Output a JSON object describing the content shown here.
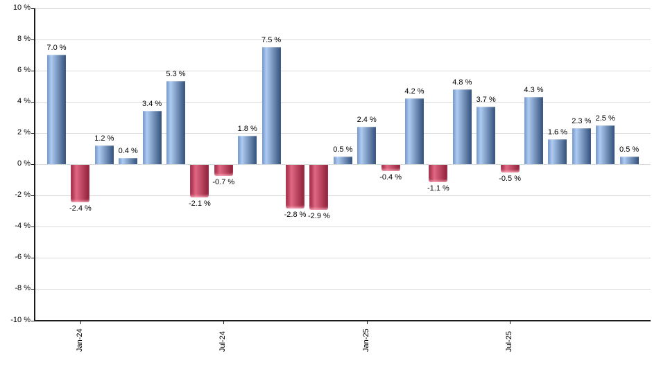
{
  "chart_data": {
    "type": "bar",
    "title": "",
    "xlabel": "",
    "ylabel": "",
    "ylim": [
      -10,
      10
    ],
    "y_tick_step": 2,
    "grid": "horizontal",
    "legend": "none",
    "y_tick_labels": [
      "10 %",
      "8 %",
      "6 %",
      "4 %",
      "2 %",
      "0 %",
      "-2 %",
      "-4 %",
      "-6 %",
      "-8 %",
      "-10 %"
    ],
    "values": [
      7.0,
      -2.4,
      1.2,
      0.4,
      3.4,
      5.3,
      -2.1,
      -0.7,
      1.8,
      7.5,
      -2.8,
      -2.9,
      0.5,
      2.4,
      -0.4,
      4.2,
      -1.1,
      4.8,
      3.7,
      -0.5,
      4.3,
      1.6,
      2.3,
      2.5,
      0.5
    ],
    "bar_labels": [
      "7.0 %",
      "-2.4 %",
      "1.2 %",
      "0.4 %",
      "3.4 %",
      "5.3 %",
      "-2.1 %",
      "-0.7 %",
      "1.8 %",
      "7.5 %",
      "-2.8 %",
      "-2.9 %",
      "0.5 %",
      "2.4 %",
      "-0.4 %",
      "4.2 %",
      "-1.1 %",
      "4.8 %",
      "3.7 %",
      "-0.5 %",
      "4.3 %",
      "1.6 %",
      "2.3 %",
      "2.5 %",
      "0.5 %"
    ],
    "x_tick_labels": [
      {
        "bar_index": 1,
        "label": "Jan-24"
      },
      {
        "bar_index": 7,
        "label": "Jul-24"
      },
      {
        "bar_index": 13,
        "label": "Jan-25"
      },
      {
        "bar_index": 19,
        "label": "Jul-25"
      }
    ],
    "colors": {
      "positive_bar": "#7295c8",
      "positive_bar_light": "#aecbf2",
      "positive_bar_dark": "#32507a",
      "negative_bar_edge": "#9a2540",
      "negative_bar_light": "#e06883",
      "negative_bar_dark": "#8e1d37",
      "gridline": "#d9d9d9",
      "axis": "#1a1a1a",
      "label_text": "#000000",
      "background": "#ffffff"
    }
  }
}
